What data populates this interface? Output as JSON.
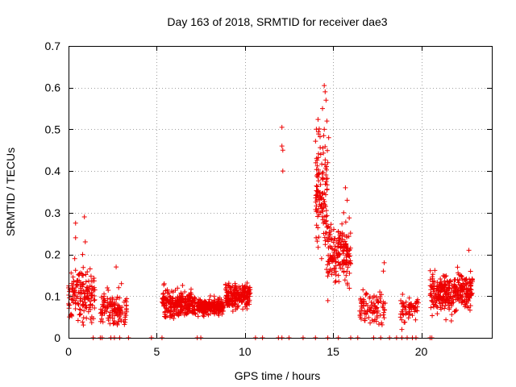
{
  "chart_data": {
    "type": "scatter",
    "title": "Day 163 of 2018, SRMTID for receiver dae3",
    "xlabel": "GPS time / hours",
    "ylabel": "SRMTID / TECUs",
    "xlim": [
      0,
      24
    ],
    "ylim": [
      0,
      0.7
    ],
    "xticks": [
      0,
      5,
      10,
      15,
      20
    ],
    "xtick_labels": [
      "0",
      "5",
      "10",
      "15",
      "20"
    ],
    "yticks": [
      0,
      0.1,
      0.2,
      0.3,
      0.4,
      0.5,
      0.6,
      0.7
    ],
    "ytick_labels": [
      "0",
      "0.1",
      "0.2",
      "0.3",
      "0.4",
      "0.5",
      "0.6",
      "0.7"
    ],
    "grid": true,
    "marker": "+",
    "color": "#ee0000",
    "series": [
      {
        "name": "dae3",
        "clusters": [
          {
            "x_start": 0.0,
            "x_end": 1.5,
            "y_center": 0.1,
            "y_spread": 0.05,
            "count": 160
          },
          {
            "x_start": 1.8,
            "x_end": 3.3,
            "y_center": 0.07,
            "y_spread": 0.03,
            "count": 120
          },
          {
            "x_start": 5.3,
            "x_end": 7.2,
            "y_center": 0.08,
            "y_spread": 0.025,
            "count": 260
          },
          {
            "x_start": 7.3,
            "x_end": 8.8,
            "y_center": 0.075,
            "y_spread": 0.015,
            "count": 260
          },
          {
            "x_start": 8.9,
            "x_end": 10.3,
            "y_center": 0.1,
            "y_spread": 0.025,
            "count": 200
          },
          {
            "x_start": 14.0,
            "x_end": 14.7,
            "y_center": 0.35,
            "y_spread": 0.12,
            "count": 130
          },
          {
            "x_start": 14.7,
            "x_end": 16.0,
            "y_center": 0.2,
            "y_spread": 0.06,
            "count": 170
          },
          {
            "x_start": 16.5,
            "x_end": 18.0,
            "y_center": 0.07,
            "y_spread": 0.03,
            "count": 90
          },
          {
            "x_start": 18.8,
            "x_end": 19.9,
            "y_center": 0.07,
            "y_spread": 0.025,
            "count": 60
          },
          {
            "x_start": 20.5,
            "x_end": 22.9,
            "y_center": 0.11,
            "y_spread": 0.035,
            "count": 330
          }
        ],
        "points": [
          [
            0.05,
            0.05
          ],
          [
            0.35,
            0.19
          ],
          [
            0.4,
            0.24
          ],
          [
            0.6,
            0.15
          ],
          [
            0.9,
            0.29
          ],
          [
            0.95,
            0.23
          ],
          [
            0.8,
            0.2
          ],
          [
            0.4,
            0.275
          ],
          [
            2.7,
            0.17
          ],
          [
            2.2,
            0.12
          ],
          [
            3.0,
            0.13
          ],
          [
            12.1,
            0.505
          ],
          [
            12.1,
            0.46
          ],
          [
            12.15,
            0.45
          ],
          [
            12.15,
            0.4
          ],
          [
            14.5,
            0.605
          ],
          [
            14.55,
            0.59
          ],
          [
            14.6,
            0.57
          ],
          [
            14.4,
            0.55
          ],
          [
            14.65,
            0.52
          ],
          [
            14.5,
            0.5
          ],
          [
            14.75,
            0.48
          ],
          [
            14.3,
            0.44
          ],
          [
            14.7,
            0.42
          ],
          [
            15.7,
            0.36
          ],
          [
            15.8,
            0.33
          ],
          [
            15.6,
            0.3
          ],
          [
            17.9,
            0.18
          ],
          [
            17.85,
            0.16
          ],
          [
            18.9,
            0.02
          ],
          [
            22.7,
            0.21
          ]
        ],
        "zero_markers": [
          1.4,
          1.8,
          1.9,
          2.4,
          2.6,
          2.9,
          3.4,
          4.7,
          5.3,
          7.3,
          7.5,
          10.6,
          11.0,
          11.9,
          12.1,
          12.5,
          13.3,
          14.0,
          14.7,
          15.3,
          16.0,
          16.4,
          17.3,
          17.7,
          18.2,
          18.6,
          18.9,
          19.2,
          19.5,
          19.7,
          20.5,
          20.6
        ]
      }
    ]
  }
}
